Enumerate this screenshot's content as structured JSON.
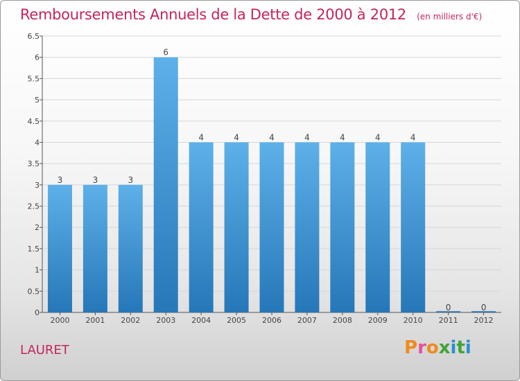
{
  "header": {
    "title": "Remboursements Annuels de la Dette de 2000 à 2012",
    "unit": "(en milliers d'€)"
  },
  "footer": {
    "commune": "LAURET",
    "brand": "Proxiti",
    "brand_colors": [
      "#f08a1c",
      "#e94e9c",
      "#f08a1c",
      "#3fa535",
      "#2a8fd4",
      "#3fa535",
      "#2a8fd4"
    ]
  },
  "colors": {
    "title": "#c4245e",
    "bar_top": "#5eb0e9",
    "bar_bottom": "#2677b8",
    "grid": "#d6d6d6",
    "axis": "#555555"
  },
  "chart_data": {
    "type": "bar",
    "title": "Remboursements Annuels de la Dette de 2000 à 2012",
    "categories": [
      "2000",
      "2001",
      "2002",
      "2003",
      "2004",
      "2005",
      "2006",
      "2007",
      "2008",
      "2009",
      "2010",
      "2011",
      "2012"
    ],
    "values": [
      3,
      3,
      3,
      6,
      4,
      4,
      4,
      4,
      4,
      4,
      4,
      0,
      0
    ],
    "value_labels": [
      "3",
      "3",
      "3",
      "6",
      "4",
      "4",
      "4",
      "4",
      "4",
      "4",
      "4",
      "0",
      "0"
    ],
    "ylim": [
      0,
      6.5
    ],
    "yticks": [
      0,
      0.5,
      1,
      1.5,
      2,
      2.5,
      3,
      3.5,
      4,
      4.5,
      5,
      5.5,
      6,
      6.5
    ],
    "ytick_labels": [
      "0",
      "0.5",
      "1",
      "1.5",
      "2",
      "2.5",
      "3",
      "3.5",
      "4",
      "4.5",
      "5",
      "5.5",
      "6",
      "6.5"
    ],
    "grid": true,
    "xlabel": "",
    "ylabel": ""
  }
}
